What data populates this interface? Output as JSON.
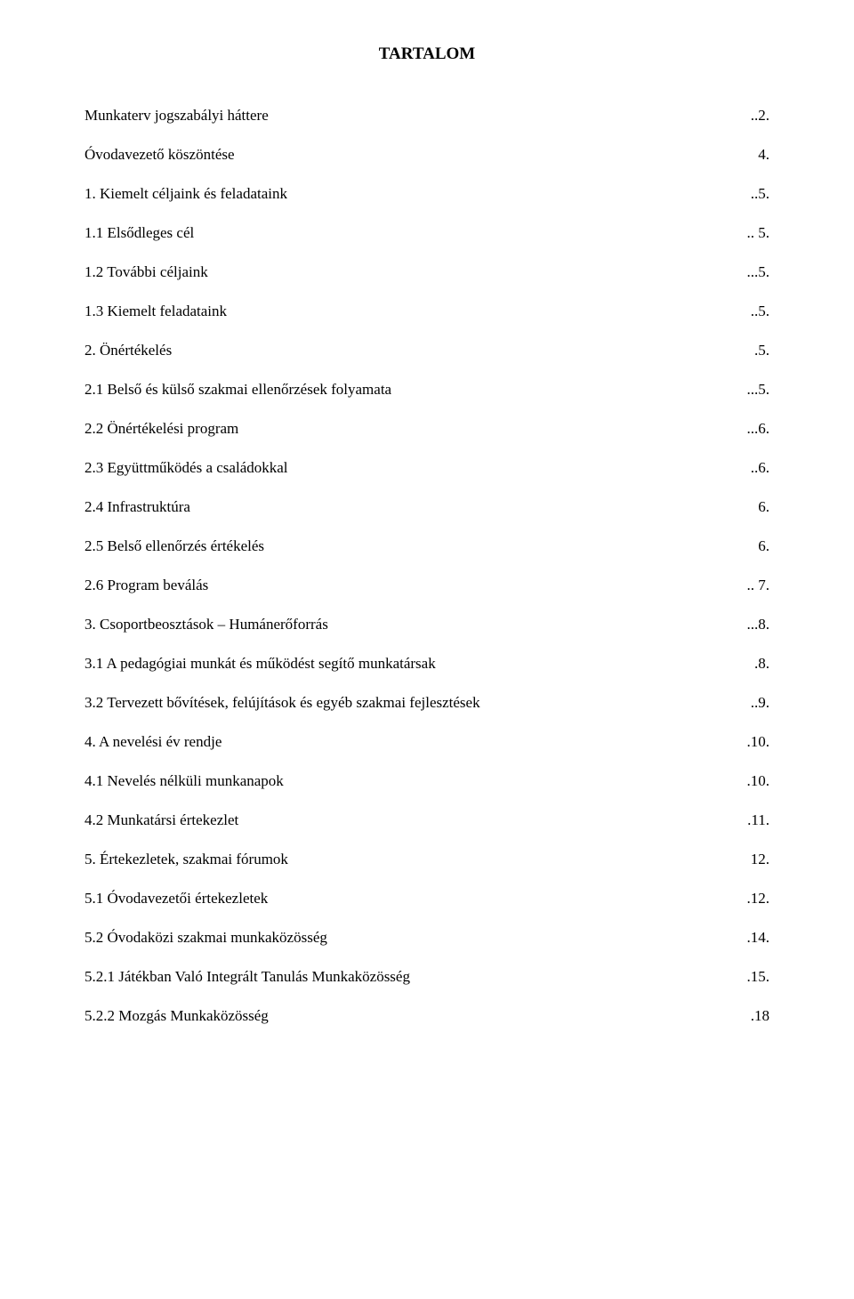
{
  "title": "TARTALOM",
  "entries": [
    {
      "label": "Munkaterv jogszabályi háttere",
      "page": "..2."
    },
    {
      "label": "Óvodavezető köszöntése",
      "page": "4."
    },
    {
      "label": "1. Kiemelt céljaink és feladataink",
      "page": "..5."
    },
    {
      "label": "1.1 Elsődleges cél",
      "page": ".. 5."
    },
    {
      "label": "1.2 További céljaink",
      "page": "...5."
    },
    {
      "label": "1.3 Kiemelt feladataink",
      "page": "..5."
    },
    {
      "label": "2. Önértékelés",
      "page": ".5."
    },
    {
      "label": "2.1 Belső és külső szakmai ellenőrzések folyamata",
      "page": "...5."
    },
    {
      "label": "2.2 Önértékelési program",
      "page": "...6."
    },
    {
      "label": "2.3 Együttműködés a családokkal",
      "page": "..6."
    },
    {
      "label": "2.4 Infrastruktúra",
      "page": "6."
    },
    {
      "label": "2.5 Belső ellenőrzés értékelés",
      "page": "6."
    },
    {
      "label": "2.6 Program beválás",
      "page": ".. 7."
    },
    {
      "label": "3. Csoportbeosztások – Humánerőforrás",
      "page": "...8."
    },
    {
      "label": "3.1 A pedagógiai munkát és működést segítő munkatársak",
      "page": ".8."
    },
    {
      "label": "3.2 Tervezett bővítések, felújítások és egyéb szakmai fejlesztések",
      "page": "..9."
    },
    {
      "label": "4. A nevelési év rendje",
      "page": ".10."
    },
    {
      "label": "4.1 Nevelés nélküli munkanapok",
      "page": ".10."
    },
    {
      "label": "4.2 Munkatársi értekezlet",
      "page": ".11."
    },
    {
      "label": "5. Értekezletek, szakmai fórumok",
      "page": "12."
    },
    {
      "label": "5.1 Óvodavezetői értekezletek",
      "page": ".12."
    },
    {
      "label": "5.2 Óvodaközi szakmai munkaközösség",
      "page": ".14."
    },
    {
      "label": "5.2.1 Játékban Való Integrált Tanulás Munkaközösség",
      "page": ".15."
    },
    {
      "label": "5.2.2 Mozgás Munkaközösség",
      "page": ".18"
    }
  ]
}
